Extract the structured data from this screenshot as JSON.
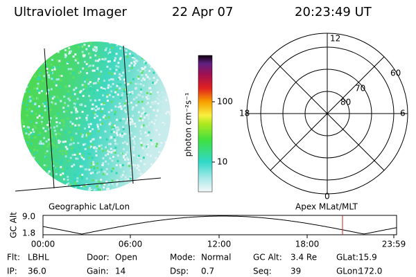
{
  "header": {
    "title": "Ultraviolet Imager",
    "date": "22 Apr 07",
    "time": "20:23:49 UT"
  },
  "colorbar": {
    "label": "photon cm⁻²s⁻¹",
    "ticks": [
      "100",
      "10"
    ]
  },
  "image_panel": {
    "label": "Geographic Lat/Lon"
  },
  "polar_panel": {
    "label": "Apex MLat/MLT",
    "mlt_labels": [
      "12",
      "18",
      "6",
      "0"
    ],
    "lat_labels": [
      "60",
      "70",
      "80"
    ]
  },
  "orbit_panel": {
    "y_label": "GC Alt",
    "y_ticks": [
      "9.0",
      "1.8"
    ],
    "x_ticks": [
      "00:00",
      "06:00",
      "12:00",
      "18:00",
      "23:59"
    ]
  },
  "footer": {
    "fields": [
      {
        "label": "Flt:",
        "value": "LBHL"
      },
      {
        "label": "IP:",
        "value": "36.0"
      },
      {
        "label": "Door:",
        "value": "Open"
      },
      {
        "label": "Gain:",
        "value": "14"
      },
      {
        "label": "Mode:",
        "value": "Normal"
      },
      {
        "label": "Dsp:",
        "value": "0.7"
      },
      {
        "label": "GC Alt:",
        "value": "3.4 Re"
      },
      {
        "label": "Seq:",
        "value": "39"
      },
      {
        "label": "GLat:",
        "value": "15.9"
      },
      {
        "label": "GLon:",
        "value": "172.0"
      }
    ]
  }
}
